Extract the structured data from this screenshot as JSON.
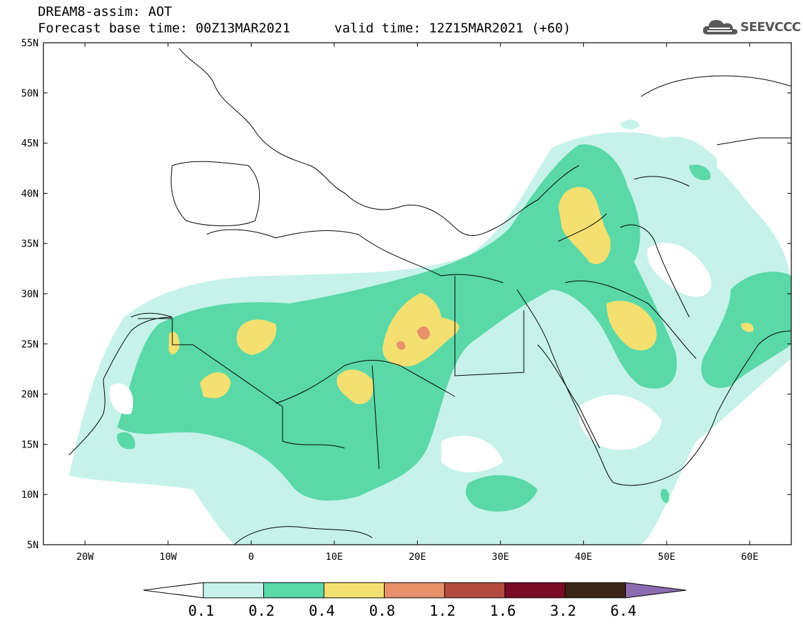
{
  "header": {
    "line1": "DREAM8-assim: AOT",
    "line2_base": "Forecast base time: 00Z13MAR2021",
    "line2_valid": "valid time: 12Z15MAR2021 (+60)",
    "logo_text": "SEEVCCC",
    "logo_icon": "cloud-icon"
  },
  "map": {
    "lon_range": [
      -25,
      65
    ],
    "lat_range": [
      5,
      55
    ],
    "lat_labels": [
      "55N",
      "50N",
      "45N",
      "40N",
      "35N",
      "30N",
      "25N",
      "20N",
      "15N",
      "10N",
      "5N"
    ],
    "lon_labels": [
      "20W",
      "10W",
      "0",
      "10E",
      "20E",
      "30E",
      "40E",
      "50E",
      "60E"
    ]
  },
  "colorbar": {
    "labels": [
      "0.1",
      "0.2",
      "0.4",
      "0.8",
      "1.2",
      "1.6",
      "3.2",
      "6.4"
    ],
    "colors": [
      "#ffffff",
      "#c6f2e9",
      "#5ad8a8",
      "#f3e071",
      "#e8906a",
      "#b34a3e",
      "#7a0b26",
      "#3b2416",
      "#8c6bb0"
    ]
  }
}
